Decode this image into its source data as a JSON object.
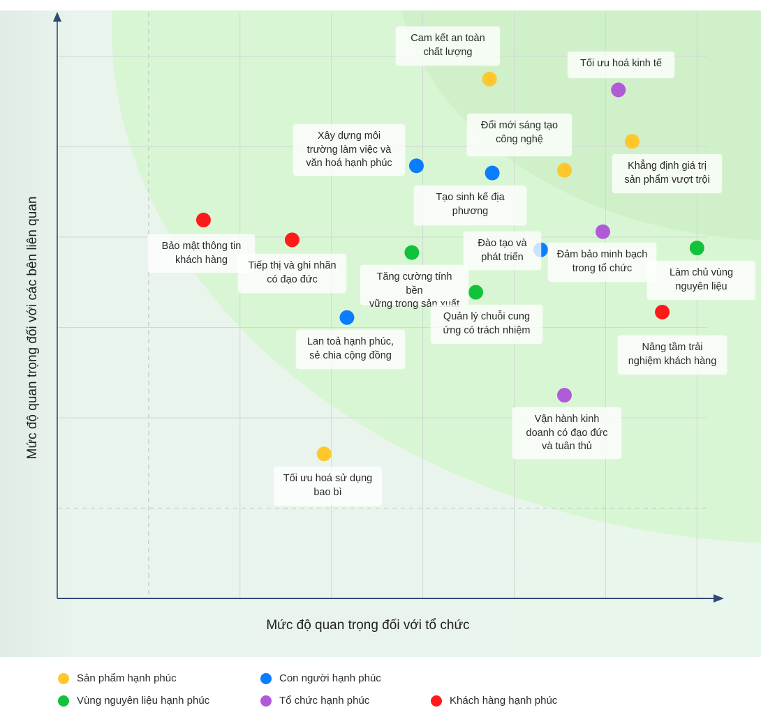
{
  "chart_data": {
    "type": "scatter",
    "title": "",
    "xlabel": "Mức độ quan trọng đối với tổ chức",
    "ylabel": "Mức độ quan trọng đối với các bên liên quan",
    "xlim": [
      0,
      7.2
    ],
    "ylim": [
      0,
      6.3
    ],
    "grid": true,
    "x_gridlines": [
      1,
      2,
      3,
      4,
      5,
      6,
      7
    ],
    "y_gridlines": [
      1,
      2,
      3,
      4,
      5,
      6
    ],
    "dashed_threshold": {
      "x": 1,
      "y": 1
    },
    "tick_labels_visible": false,
    "legend_position": "bottom",
    "series": [
      {
        "name": "Sản phẩm hạnh phúc",
        "color": "#FFC72C",
        "points": [
          {
            "label": "Cam kết an toàn chất lượng",
            "x": 4.73,
            "y": 5.75
          },
          {
            "label": "Đổi mới sáng tạo công nghệ",
            "x": 5.55,
            "y": 4.74
          },
          {
            "label": "Khẳng định giá trị sản phẩm vượt trội",
            "x": 6.29,
            "y": 5.06
          },
          {
            "label": "Tối ưu hoá sử dụng bao bì",
            "x": 2.92,
            "y": 1.6
          }
        ]
      },
      {
        "name": "Con người hạnh phúc",
        "color": "#0A7CFF",
        "points": [
          {
            "label": "Xây dựng môi trường làm việc và văn hoá hạnh phúc",
            "x": 3.93,
            "y": 4.79
          },
          {
            "label": "Tạo sinh kế địa phương",
            "x": 4.76,
            "y": 4.71
          },
          {
            "label": "Đào tạo và phát triển",
            "x": 5.29,
            "y": 3.86
          },
          {
            "label": "Lan toả hạnh phúc, sẻ chia cộng đồng",
            "x": 3.17,
            "y": 3.11
          }
        ]
      },
      {
        "name": "Vùng nguyên liệu hạnh phúc",
        "color": "#12C23C",
        "points": [
          {
            "label": "Tăng cường tính bền vững trong sản xuất",
            "x": 3.88,
            "y": 3.83
          },
          {
            "label": "Quản lý chuỗi cung ứng có trách nhiệm",
            "x": 4.58,
            "y": 3.39
          },
          {
            "label": "Làm chủ vùng nguyên liệu",
            "x": 7.0,
            "y": 3.88
          }
        ]
      },
      {
        "name": "Tổ chức hạnh phúc",
        "color": "#B05AD8",
        "points": [
          {
            "label": "Tối ưu hoá kinh tế",
            "x": 6.14,
            "y": 5.63
          },
          {
            "label": "Đảm bảo minh bạch trong tổ chức",
            "x": 5.97,
            "y": 4.06
          },
          {
            "label": "Vận hành kinh doanh có đạo đức và tuân thủ",
            "x": 5.55,
            "y": 2.25
          }
        ]
      },
      {
        "name": "Khách hàng hạnh phúc",
        "color": "#FF1A1A",
        "points": [
          {
            "label": "Bảo mật thông tin khách hàng",
            "x": 1.6,
            "y": 4.19
          },
          {
            "label": "Tiếp thị và ghi nhãn có đạo đức",
            "x": 2.57,
            "y": 3.97
          },
          {
            "label": "Nâng tầm trải nghiệm khách hàng",
            "x": 6.62,
            "y": 3.17
          }
        ]
      }
    ]
  },
  "labels": [
    {
      "text": "Cam kết an toàn\nchất lượng"
    },
    {
      "text": "Tối ưu hoá kinh tế"
    },
    {
      "text": "Xây dựng môi\ntrường làm việc và\nvăn hoá hạnh phúc"
    },
    {
      "text": "Đổi mới sáng tạo\ncông nghệ"
    },
    {
      "text": "Khẳng định giá trị\nsản phẩm vượt trội"
    },
    {
      "text": "Tạo sinh kế địa\nphương"
    },
    {
      "text": "Bảo mật thông tin\nkhách hàng"
    },
    {
      "text": "Tiếp thị và ghi nhãn\ncó đạo đức"
    },
    {
      "text": "Tăng cường tính bền\nvững trong sản xuất"
    },
    {
      "text": "Đào tạo và\nphát triển"
    },
    {
      "text": "Đảm bảo minh bạch\ntrong tổ chức"
    },
    {
      "text": "Làm chủ vùng\nnguyên liệu"
    },
    {
      "text": "Quản lý chuỗi cung\nứng có trách nhiệm"
    },
    {
      "text": "Nâng tầm trải\nnghiệm khách hàng"
    },
    {
      "text": "Lan toả hạnh phúc,\nsẻ chia cộng đồng"
    },
    {
      "text": "Vận hành kinh\ndoanh có đạo đức\nvà tuân thủ"
    },
    {
      "text": "Tối ưu hoá sử dụng\nbao bì"
    }
  ],
  "colors": {
    "axis": "#2F4A78",
    "grid": "#cfd8d3",
    "bg_outer": "#e4efe8",
    "bg_plot": "#eaf5ee",
    "zone_outer": "#d9f5d6",
    "zone_inner": "#cdf1c7"
  }
}
